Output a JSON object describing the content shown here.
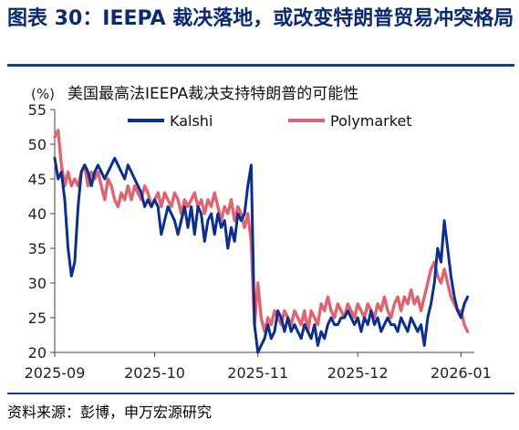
{
  "figure_title": "图表 30：IEEPA 裁决落地，或改变特朗普贸易冲突格局",
  "source": "资料来源：彭博，申万宏源研究",
  "colors": {
    "kalshi": "#0b2e8f",
    "polymarket": "#e06470",
    "accent": "#1a3a8a"
  },
  "chart_data": {
    "type": "line",
    "title": "美国最高法IEEPA裁决支持特朗普的可能性",
    "ylabel_unit": "(%)",
    "ylim": [
      20,
      55
    ],
    "yticks": [
      20,
      25,
      30,
      35,
      40,
      45,
      50,
      55
    ],
    "xlim": [
      "2025-09-01",
      "2026-01-05"
    ],
    "xticks": [
      {
        "date": "2025-09-01",
        "label": "2025-09"
      },
      {
        "date": "2025-10-01",
        "label": "2025-10"
      },
      {
        "date": "2025-11-01",
        "label": "2025-11"
      },
      {
        "date": "2025-12-01",
        "label": "2025-12"
      },
      {
        "date": "2026-01-01",
        "label": "2026-01"
      }
    ],
    "legend_position": "top",
    "grid": false,
    "series": [
      {
        "name": "Kalshi",
        "points": [
          [
            "2025-09-01",
            48
          ],
          [
            "2025-09-02",
            45
          ],
          [
            "2025-09-03",
            46
          ],
          [
            "2025-09-04",
            42
          ],
          [
            "2025-09-05",
            35
          ],
          [
            "2025-09-06",
            31
          ],
          [
            "2025-09-07",
            33
          ],
          [
            "2025-09-08",
            41
          ],
          [
            "2025-09-09",
            46
          ],
          [
            "2025-09-10",
            47
          ],
          [
            "2025-09-11",
            46
          ],
          [
            "2025-09-12",
            44
          ],
          [
            "2025-09-13",
            46
          ],
          [
            "2025-09-14",
            47
          ],
          [
            "2025-09-15",
            46
          ],
          [
            "2025-09-16",
            45
          ],
          [
            "2025-09-17",
            46
          ],
          [
            "2025-09-18",
            47
          ],
          [
            "2025-09-19",
            48
          ],
          [
            "2025-09-20",
            47
          ],
          [
            "2025-09-21",
            46
          ],
          [
            "2025-09-22",
            45
          ],
          [
            "2025-09-23",
            47
          ],
          [
            "2025-09-24",
            46
          ],
          [
            "2025-09-25",
            45
          ],
          [
            "2025-09-26",
            44
          ],
          [
            "2025-09-27",
            43
          ],
          [
            "2025-09-28",
            41
          ],
          [
            "2025-09-29",
            42
          ],
          [
            "2025-09-30",
            41
          ],
          [
            "2025-10-01",
            42
          ],
          [
            "2025-10-02",
            41
          ],
          [
            "2025-10-03",
            37
          ],
          [
            "2025-10-04",
            39
          ],
          [
            "2025-10-05",
            41
          ],
          [
            "2025-10-06",
            40
          ],
          [
            "2025-10-07",
            39
          ],
          [
            "2025-10-08",
            37
          ],
          [
            "2025-10-09",
            39
          ],
          [
            "2025-10-10",
            41
          ],
          [
            "2025-10-11",
            38
          ],
          [
            "2025-10-12",
            41
          ],
          [
            "2025-10-13",
            37
          ],
          [
            "2025-10-14",
            41
          ],
          [
            "2025-10-15",
            40
          ],
          [
            "2025-10-16",
            36
          ],
          [
            "2025-10-17",
            39
          ],
          [
            "2025-10-18",
            40
          ],
          [
            "2025-10-19",
            37
          ],
          [
            "2025-10-20",
            40
          ],
          [
            "2025-10-21",
            38
          ],
          [
            "2025-10-22",
            39
          ],
          [
            "2025-10-23",
            35
          ],
          [
            "2025-10-24",
            38
          ],
          [
            "2025-10-25",
            36
          ],
          [
            "2025-10-26",
            40
          ],
          [
            "2025-10-27",
            39
          ],
          [
            "2025-10-28",
            40
          ],
          [
            "2025-10-29",
            44
          ],
          [
            "2025-10-30",
            47
          ],
          [
            "2025-10-31",
            24
          ],
          [
            "2025-11-01",
            20
          ],
          [
            "2025-11-02",
            21
          ],
          [
            "2025-11-03",
            22
          ],
          [
            "2025-11-04",
            24
          ],
          [
            "2025-11-05",
            22
          ],
          [
            "2025-11-06",
            23
          ],
          [
            "2025-11-07",
            26
          ],
          [
            "2025-11-08",
            25
          ],
          [
            "2025-11-09",
            23
          ],
          [
            "2025-11-10",
            25
          ],
          [
            "2025-11-11",
            23
          ],
          [
            "2025-11-12",
            24
          ],
          [
            "2025-11-13",
            23
          ],
          [
            "2025-11-14",
            22
          ],
          [
            "2025-11-15",
            24
          ],
          [
            "2025-11-16",
            23
          ],
          [
            "2025-11-17",
            22
          ],
          [
            "2025-11-18",
            24
          ],
          [
            "2025-11-19",
            21
          ],
          [
            "2025-11-20",
            23
          ],
          [
            "2025-11-21",
            22
          ],
          [
            "2025-11-22",
            24
          ],
          [
            "2025-11-23",
            25
          ],
          [
            "2025-11-24",
            24
          ],
          [
            "2025-11-25",
            24
          ],
          [
            "2025-11-26",
            25
          ],
          [
            "2025-11-27",
            25
          ],
          [
            "2025-11-28",
            26
          ],
          [
            "2025-11-29",
            25
          ],
          [
            "2025-11-30",
            24
          ],
          [
            "2025-12-01",
            25
          ],
          [
            "2025-12-02",
            23
          ],
          [
            "2025-12-03",
            25
          ],
          [
            "2025-12-04",
            24
          ],
          [
            "2025-12-05",
            26
          ],
          [
            "2025-12-06",
            24
          ],
          [
            "2025-12-07",
            25
          ],
          [
            "2025-12-08",
            23
          ],
          [
            "2025-12-09",
            24
          ],
          [
            "2025-12-10",
            25
          ],
          [
            "2025-12-11",
            24
          ],
          [
            "2025-12-12",
            24
          ],
          [
            "2025-12-13",
            23
          ],
          [
            "2025-12-14",
            25
          ],
          [
            "2025-12-15",
            24
          ],
          [
            "2025-12-16",
            23
          ],
          [
            "2025-12-17",
            25
          ],
          [
            "2025-12-18",
            24
          ],
          [
            "2025-12-19",
            23
          ],
          [
            "2025-12-20",
            24
          ],
          [
            "2025-12-21",
            21
          ],
          [
            "2025-12-22",
            25
          ],
          [
            "2025-12-23",
            27
          ],
          [
            "2025-12-24",
            30
          ],
          [
            "2025-12-25",
            35
          ],
          [
            "2025-12-26",
            33
          ],
          [
            "2025-12-27",
            39
          ],
          [
            "2025-12-28",
            35
          ],
          [
            "2025-12-29",
            31
          ],
          [
            "2025-12-30",
            28
          ],
          [
            "2025-12-31",
            26
          ],
          [
            "2026-01-01",
            25
          ],
          [
            "2026-01-02",
            27
          ],
          [
            "2026-01-03",
            28
          ]
        ]
      },
      {
        "name": "Polymarket",
        "points": [
          [
            "2025-09-01",
            51
          ],
          [
            "2025-09-02",
            52
          ],
          [
            "2025-09-03",
            47
          ],
          [
            "2025-09-04",
            44
          ],
          [
            "2025-09-05",
            46
          ],
          [
            "2025-09-06",
            44
          ],
          [
            "2025-09-07",
            45
          ],
          [
            "2025-09-08",
            44
          ],
          [
            "2025-09-09",
            46
          ],
          [
            "2025-09-10",
            47
          ],
          [
            "2025-09-11",
            44
          ],
          [
            "2025-09-12",
            46
          ],
          [
            "2025-09-13",
            45
          ],
          [
            "2025-09-14",
            46
          ],
          [
            "2025-09-15",
            44
          ],
          [
            "2025-09-16",
            42
          ],
          [
            "2025-09-17",
            45
          ],
          [
            "2025-09-18",
            44
          ],
          [
            "2025-09-19",
            42
          ],
          [
            "2025-09-20",
            41
          ],
          [
            "2025-09-21",
            43
          ],
          [
            "2025-09-22",
            42
          ],
          [
            "2025-09-23",
            44
          ],
          [
            "2025-09-24",
            42
          ],
          [
            "2025-09-25",
            44
          ],
          [
            "2025-09-26",
            43
          ],
          [
            "2025-09-27",
            42
          ],
          [
            "2025-09-28",
            44
          ],
          [
            "2025-09-29",
            43
          ],
          [
            "2025-09-30",
            41
          ],
          [
            "2025-10-01",
            42
          ],
          [
            "2025-10-02",
            43
          ],
          [
            "2025-10-03",
            41
          ],
          [
            "2025-10-04",
            43
          ],
          [
            "2025-10-05",
            42
          ],
          [
            "2025-10-06",
            41
          ],
          [
            "2025-10-07",
            43
          ],
          [
            "2025-10-08",
            42
          ],
          [
            "2025-10-09",
            40
          ],
          [
            "2025-10-10",
            42
          ],
          [
            "2025-10-11",
            41
          ],
          [
            "2025-10-12",
            42
          ],
          [
            "2025-10-13",
            43
          ],
          [
            "2025-10-14",
            41
          ],
          [
            "2025-10-15",
            42
          ],
          [
            "2025-10-16",
            40
          ],
          [
            "2025-10-17",
            42
          ],
          [
            "2025-10-18",
            41
          ],
          [
            "2025-10-19",
            43
          ],
          [
            "2025-10-20",
            41
          ],
          [
            "2025-10-21",
            39
          ],
          [
            "2025-10-22",
            41
          ],
          [
            "2025-10-23",
            40
          ],
          [
            "2025-10-24",
            42
          ],
          [
            "2025-10-25",
            39
          ],
          [
            "2025-10-26",
            41
          ],
          [
            "2025-10-27",
            40
          ],
          [
            "2025-10-28",
            38
          ],
          [
            "2025-10-29",
            40
          ],
          [
            "2025-10-30",
            36
          ],
          [
            "2025-10-31",
            24
          ],
          [
            "2025-11-01",
            30
          ],
          [
            "2025-11-02",
            25
          ],
          [
            "2025-11-03",
            23
          ],
          [
            "2025-11-04",
            25
          ],
          [
            "2025-11-05",
            24
          ],
          [
            "2025-11-06",
            26
          ],
          [
            "2025-11-07",
            25
          ],
          [
            "2025-11-08",
            24
          ],
          [
            "2025-11-09",
            26
          ],
          [
            "2025-11-10",
            25
          ],
          [
            "2025-11-11",
            24
          ],
          [
            "2025-11-12",
            26
          ],
          [
            "2025-11-13",
            25
          ],
          [
            "2025-11-14",
            24
          ],
          [
            "2025-11-15",
            26
          ],
          [
            "2025-11-16",
            23
          ],
          [
            "2025-11-17",
            26
          ],
          [
            "2025-11-18",
            25
          ],
          [
            "2025-11-19",
            24
          ],
          [
            "2025-11-20",
            27
          ],
          [
            "2025-11-21",
            26
          ],
          [
            "2025-11-22",
            28
          ],
          [
            "2025-11-23",
            26
          ],
          [
            "2025-11-24",
            25
          ],
          [
            "2025-11-25",
            27
          ],
          [
            "2025-11-26",
            26
          ],
          [
            "2025-11-27",
            25
          ],
          [
            "2025-11-28",
            27
          ],
          [
            "2025-11-29",
            26
          ],
          [
            "2025-11-30",
            25
          ],
          [
            "2025-12-01",
            27
          ],
          [
            "2025-12-02",
            26
          ],
          [
            "2025-12-03",
            25
          ],
          [
            "2025-12-04",
            27
          ],
          [
            "2025-12-05",
            26
          ],
          [
            "2025-12-06",
            25
          ],
          [
            "2025-12-07",
            27
          ],
          [
            "2025-12-08",
            26
          ],
          [
            "2025-12-09",
            28
          ],
          [
            "2025-12-10",
            26
          ],
          [
            "2025-12-11",
            25
          ],
          [
            "2025-12-12",
            27
          ],
          [
            "2025-12-13",
            28
          ],
          [
            "2025-12-14",
            26
          ],
          [
            "2025-12-15",
            28
          ],
          [
            "2025-12-16",
            27
          ],
          [
            "2025-12-17",
            29
          ],
          [
            "2025-12-18",
            27
          ],
          [
            "2025-12-19",
            28
          ],
          [
            "2025-12-20",
            26
          ],
          [
            "2025-12-21",
            28
          ],
          [
            "2025-12-22",
            30
          ],
          [
            "2025-12-23",
            32
          ],
          [
            "2025-12-24",
            33
          ],
          [
            "2025-12-25",
            31
          ],
          [
            "2025-12-26",
            30
          ],
          [
            "2025-12-27",
            32
          ],
          [
            "2025-12-28",
            30
          ],
          [
            "2025-12-29",
            28
          ],
          [
            "2025-12-30",
            27
          ],
          [
            "2025-12-31",
            26
          ],
          [
            "2026-01-01",
            26
          ],
          [
            "2026-01-02",
            24
          ],
          [
            "2026-01-03",
            23
          ]
        ]
      }
    ]
  }
}
